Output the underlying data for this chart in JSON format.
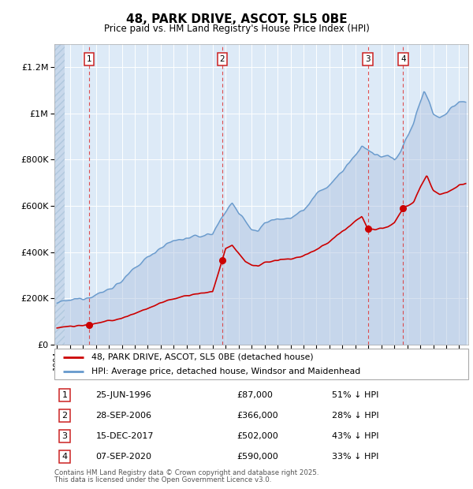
{
  "title": "48, PARK DRIVE, ASCOT, SL5 0BE",
  "subtitle": "Price paid vs. HM Land Registry's House Price Index (HPI)",
  "ylim": [
    0,
    1300000
  ],
  "xlim_start": 1993.8,
  "xlim_end": 2025.7,
  "bg_color": "#ddeaf7",
  "grid_color": "#ffffff",
  "hpi_color": "#6699cc",
  "hpi_fill_color": "#aabedd",
  "price_color": "#cc0000",
  "yticks": [
    0,
    200000,
    400000,
    600000,
    800000,
    1000000,
    1200000
  ],
  "ytick_labels": [
    "£0",
    "£200K",
    "£400K",
    "£600K",
    "£800K",
    "£1M",
    "£1.2M"
  ],
  "sales": [
    {
      "num": 1,
      "date_year": 1996.48,
      "price": 87000,
      "label": "25-JUN-1996",
      "price_str": "£87,000",
      "pct": "51% ↓ HPI"
    },
    {
      "num": 2,
      "date_year": 2006.74,
      "price": 366000,
      "label": "28-SEP-2006",
      "price_str": "£366,000",
      "pct": "28% ↓ HPI"
    },
    {
      "num": 3,
      "date_year": 2017.96,
      "price": 502000,
      "label": "15-DEC-2017",
      "price_str": "£502,000",
      "pct": "43% ↓ HPI"
    },
    {
      "num": 4,
      "date_year": 2020.68,
      "price": 590000,
      "label": "07-SEP-2020",
      "price_str": "£590,000",
      "pct": "33% ↓ HPI"
    }
  ],
  "legend_price_label": "48, PARK DRIVE, ASCOT, SL5 0BE (detached house)",
  "legend_hpi_label": "HPI: Average price, detached house, Windsor and Maidenhead",
  "footer1": "Contains HM Land Registry data © Crown copyright and database right 2025.",
  "footer2": "This data is licensed under the Open Government Licence v3.0.",
  "hpi_anchors_years": [
    1994.0,
    1995.0,
    1996.0,
    1997.0,
    1998.0,
    1999.0,
    2000.0,
    2001.0,
    2002.0,
    2003.0,
    2004.0,
    2005.0,
    2006.0,
    2007.0,
    2007.5,
    2008.0,
    2008.5,
    2009.0,
    2009.5,
    2010.0,
    2011.0,
    2012.0,
    2013.0,
    2014.0,
    2015.0,
    2016.0,
    2017.0,
    2017.5,
    2018.0,
    2018.5,
    2019.0,
    2019.5,
    2020.0,
    2020.5,
    2021.0,
    2021.5,
    2022.0,
    2022.3,
    2022.7,
    2023.0,
    2023.5,
    2024.0,
    2024.5,
    2025.0,
    2025.5
  ],
  "hpi_anchors_vals": [
    180000,
    192000,
    202000,
    215000,
    240000,
    275000,
    330000,
    380000,
    420000,
    450000,
    460000,
    470000,
    480000,
    580000,
    610000,
    570000,
    540000,
    500000,
    490000,
    530000,
    545000,
    550000,
    580000,
    650000,
    690000,
    750000,
    820000,
    860000,
    840000,
    820000,
    810000,
    815000,
    800000,
    840000,
    900000,
    960000,
    1050000,
    1100000,
    1050000,
    1000000,
    980000,
    1000000,
    1030000,
    1050000,
    1040000
  ],
  "price_anchors_years": [
    1994.0,
    1995.0,
    1996.0,
    1996.48,
    1997.0,
    1998.0,
    1999.0,
    2000.0,
    2001.0,
    2002.0,
    2003.0,
    2004.0,
    2005.0,
    2006.0,
    2006.74,
    2007.0,
    2007.5,
    2008.0,
    2008.5,
    2009.0,
    2009.5,
    2010.0,
    2011.0,
    2012.0,
    2013.0,
    2014.0,
    2015.0,
    2016.0,
    2017.0,
    2017.5,
    2017.96,
    2018.5,
    2019.0,
    2019.5,
    2020.0,
    2020.68,
    2021.0,
    2021.5,
    2022.0,
    2022.5,
    2023.0,
    2023.5,
    2024.0,
    2024.5,
    2025.0,
    2025.5
  ],
  "price_anchors_vals": [
    75000,
    80000,
    83000,
    87000,
    92000,
    102000,
    115000,
    135000,
    158000,
    180000,
    200000,
    212000,
    222000,
    230000,
    366000,
    415000,
    430000,
    395000,
    360000,
    345000,
    340000,
    355000,
    365000,
    370000,
    385000,
    410000,
    445000,
    490000,
    535000,
    555000,
    502000,
    495000,
    505000,
    510000,
    525000,
    590000,
    600000,
    620000,
    680000,
    730000,
    670000,
    650000,
    660000,
    670000,
    690000,
    695000
  ]
}
